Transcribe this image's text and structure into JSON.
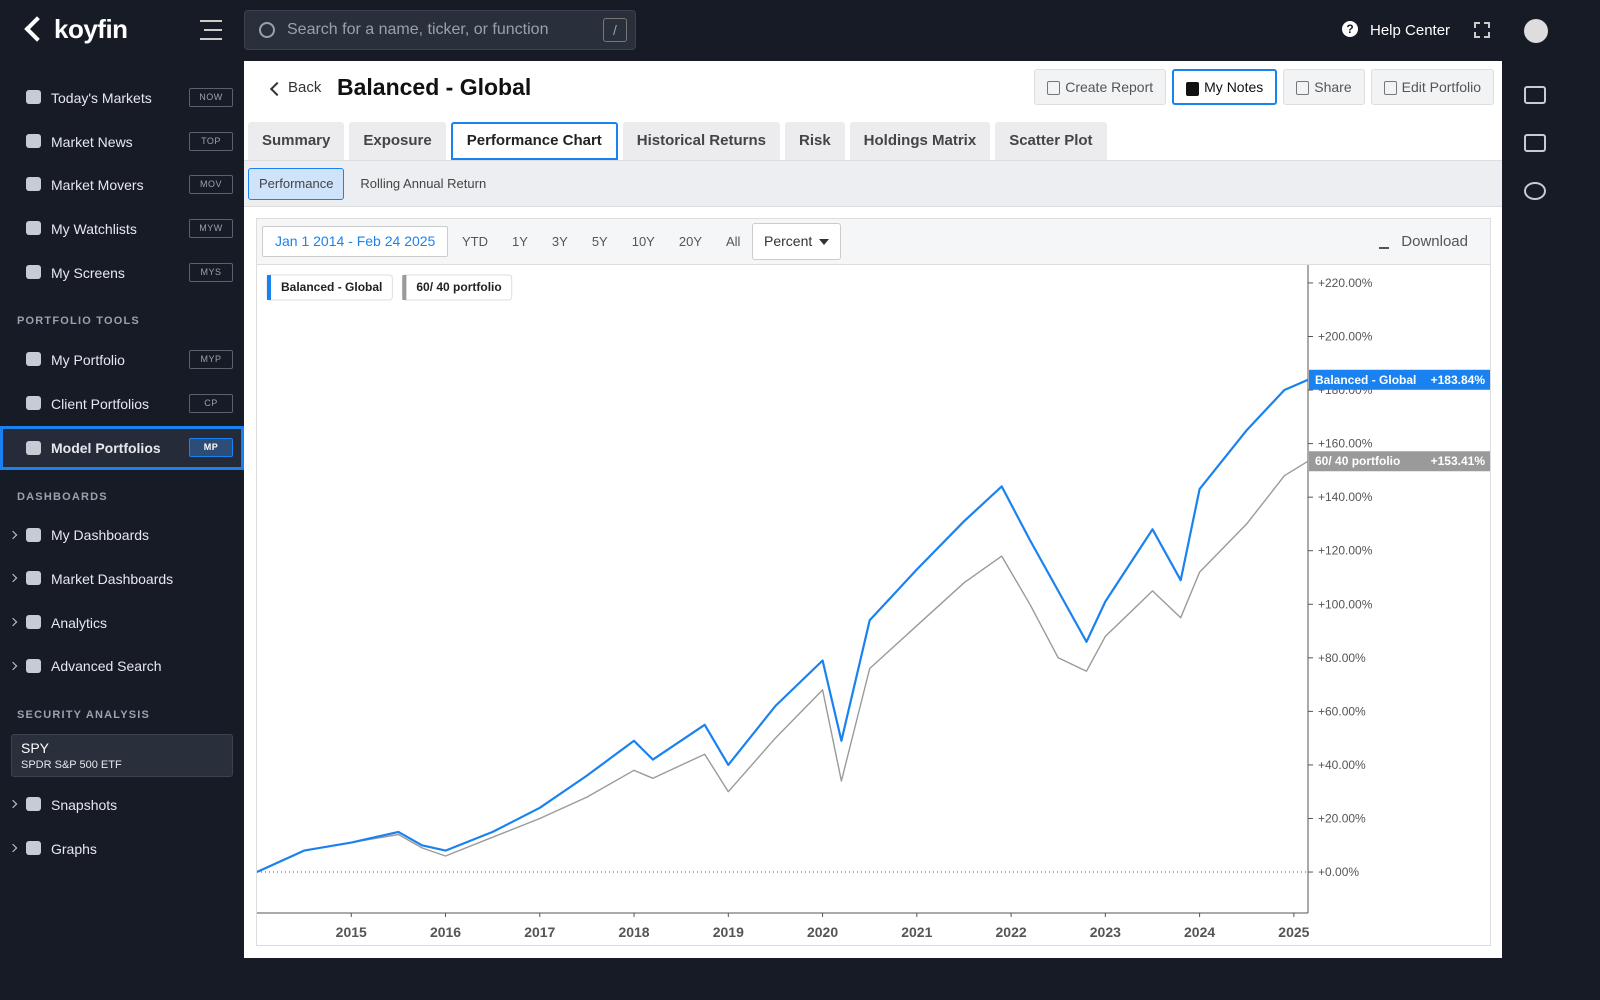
{
  "topbar": {
    "logo": "koyfin",
    "search_placeholder": "Search for a name, ticker, or function",
    "search_shortcut": "/",
    "help": "Help Center"
  },
  "sidebar": {
    "top": [
      {
        "label": "Today's Markets",
        "shortcut": "NOW"
      },
      {
        "label": "Market News",
        "shortcut": "TOP"
      },
      {
        "label": "Market Movers",
        "shortcut": "MOV"
      },
      {
        "label": "My Watchlists",
        "shortcut": "MYW"
      },
      {
        "label": "My Screens",
        "shortcut": "MYS"
      }
    ],
    "portfolio_tools": {
      "title": "PORTFOLIO TOOLS",
      "items": [
        {
          "label": "My Portfolio",
          "shortcut": "MYP"
        },
        {
          "label": "Client Portfolios",
          "shortcut": "CP"
        },
        {
          "label": "Model Portfolios",
          "shortcut": "MP",
          "active": true
        }
      ]
    },
    "dashboards": {
      "title": "DASHBOARDS",
      "items": [
        "My Dashboards",
        "Market Dashboards",
        "Analytics",
        "Advanced Search"
      ]
    },
    "security_analysis": {
      "title": "SECURITY ANALYSIS",
      "ticker": "SPY",
      "ticker_name": "SPDR S&P 500 ETF",
      "items": [
        "Snapshots",
        "Graphs"
      ]
    }
  },
  "header": {
    "back": "Back",
    "title": "Balanced - Global",
    "buttons": [
      "Create Report",
      "My Notes",
      "Share",
      "Edit Portfolio"
    ],
    "active_button": 1
  },
  "tabs": [
    "Summary",
    "Exposure",
    "Performance Chart",
    "Historical Returns",
    "Risk",
    "Holdings Matrix",
    "Scatter Plot"
  ],
  "active_tab": 2,
  "subtabs": [
    "Performance",
    "Rolling Annual Return"
  ],
  "active_subtab": 0,
  "toolbar": {
    "date_range": "Jan 1 2014 - Feb 24 2025",
    "ranges": [
      "YTD",
      "1Y",
      "3Y",
      "5Y",
      "10Y",
      "20Y",
      "All"
    ],
    "unit": "Percent",
    "download": "Download"
  },
  "chart_data": {
    "type": "line",
    "x": [
      2014.0,
      2014.5,
      2015.0,
      2015.5,
      2015.75,
      2016.0,
      2016.5,
      2017.0,
      2017.5,
      2018.0,
      2018.2,
      2018.75,
      2019.0,
      2019.5,
      2020.0,
      2020.2,
      2020.5,
      2021.0,
      2021.5,
      2021.9,
      2022.2,
      2022.5,
      2022.8,
      2023.0,
      2023.5,
      2023.8,
      2024.0,
      2024.5,
      2024.9,
      2025.15
    ],
    "series": [
      {
        "name": "Balanced - Global",
        "color": "#1a82f0",
        "end_value_label": "+183.84%",
        "values": [
          0,
          8,
          11,
          15,
          10,
          8,
          15,
          24,
          36,
          49,
          42,
          55,
          40,
          62,
          79,
          49,
          94,
          113,
          131,
          144,
          124,
          105,
          86,
          101,
          128,
          109,
          143,
          165,
          180,
          183.84
        ]
      },
      {
        "name": "60/ 40 portfolio",
        "color": "#9a9a9a",
        "end_value_label": "+153.41%",
        "values": [
          0,
          8,
          11,
          14,
          9,
          6,
          13,
          20,
          28,
          38,
          35,
          44,
          30,
          50,
          68,
          34,
          76,
          92,
          108,
          118,
          100,
          80,
          75,
          88,
          105,
          95,
          112,
          130,
          148,
          153.41
        ]
      }
    ],
    "xlim": [
      2014.0,
      2025.15
    ],
    "xticks": [
      2015,
      2016,
      2017,
      2018,
      2019,
      2020,
      2021,
      2022,
      2023,
      2024,
      2025
    ],
    "ylim": [
      -15.3,
      226.7
    ],
    "yticks": [
      {
        "value": 0,
        "label": "+0.00%"
      },
      {
        "value": 20,
        "label": "+20.00%"
      },
      {
        "value": 40,
        "label": "+40.00%"
      },
      {
        "value": 60,
        "label": "+60.00%"
      },
      {
        "value": 80,
        "label": "+80.00%"
      },
      {
        "value": 100,
        "label": "+100.00%"
      },
      {
        "value": 120,
        "label": "+120.00%"
      },
      {
        "value": 140,
        "label": "+140.00%"
      },
      {
        "value": 160,
        "label": "+160.00%"
      },
      {
        "value": 180,
        "label": "+180.00%"
      },
      {
        "value": 200,
        "label": "+200.00%"
      },
      {
        "value": 220,
        "label": "+220.00%"
      }
    ],
    "grid": false
  }
}
